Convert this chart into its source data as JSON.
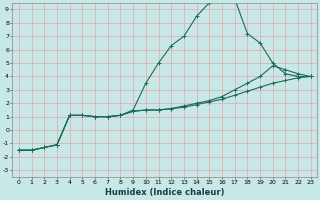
{
  "title": "",
  "xlabel": "Humidex (Indice chaleur)",
  "bg_color": "#c8e8e8",
  "grid_color": "#e8a8a8",
  "line_color": "#1a6b5a",
  "xlim": [
    -0.5,
    23.5
  ],
  "ylim": [
    -3.5,
    9.5
  ],
  "xticks": [
    0,
    1,
    2,
    3,
    4,
    5,
    6,
    7,
    8,
    9,
    10,
    11,
    12,
    13,
    14,
    15,
    16,
    17,
    18,
    19,
    20,
    21,
    22,
    23
  ],
  "yticks": [
    -3,
    -2,
    -1,
    0,
    1,
    2,
    3,
    4,
    5,
    6,
    7,
    8,
    9
  ],
  "curve1_x": [
    0,
    1,
    2,
    3,
    4,
    5,
    6,
    7,
    8,
    9,
    10,
    11,
    12,
    13,
    14,
    15,
    16,
    17,
    18,
    19,
    20,
    21,
    22,
    23
  ],
  "curve1_y": [
    -1.5,
    -1.5,
    -1.3,
    -1.1,
    1.1,
    1.1,
    1.0,
    1.0,
    1.1,
    1.5,
    3.5,
    5.0,
    6.3,
    7.0,
    8.5,
    9.5,
    9.8,
    9.8,
    7.2,
    6.5,
    5.0,
    4.2,
    4.0,
    4.0
  ],
  "curve2_x": [
    0,
    1,
    2,
    3,
    4,
    5,
    6,
    7,
    8,
    9,
    10,
    11,
    12,
    13,
    14,
    15,
    16,
    17,
    18,
    19,
    20,
    21,
    22,
    23
  ],
  "curve2_y": [
    -1.5,
    -1.5,
    -1.3,
    -1.1,
    1.1,
    1.1,
    1.0,
    1.0,
    1.1,
    1.4,
    1.5,
    1.5,
    1.6,
    1.8,
    2.0,
    2.2,
    2.5,
    3.0,
    3.5,
    4.0,
    4.8,
    4.5,
    4.2,
    4.0
  ],
  "curve3_x": [
    0,
    1,
    2,
    3,
    4,
    5,
    6,
    7,
    8,
    9,
    10,
    11,
    12,
    13,
    14,
    15,
    16,
    17,
    18,
    19,
    20,
    21,
    22,
    23
  ],
  "curve3_y": [
    -1.5,
    -1.5,
    -1.3,
    -1.1,
    1.1,
    1.1,
    1.0,
    1.0,
    1.1,
    1.4,
    1.5,
    1.5,
    1.6,
    1.7,
    1.9,
    2.1,
    2.3,
    2.6,
    2.9,
    3.2,
    3.5,
    3.7,
    3.9,
    4.0
  ],
  "xlabel_fontsize": 6.0,
  "tick_fontsize": 4.5,
  "marker_size": 2.5,
  "linewidth": 0.8
}
